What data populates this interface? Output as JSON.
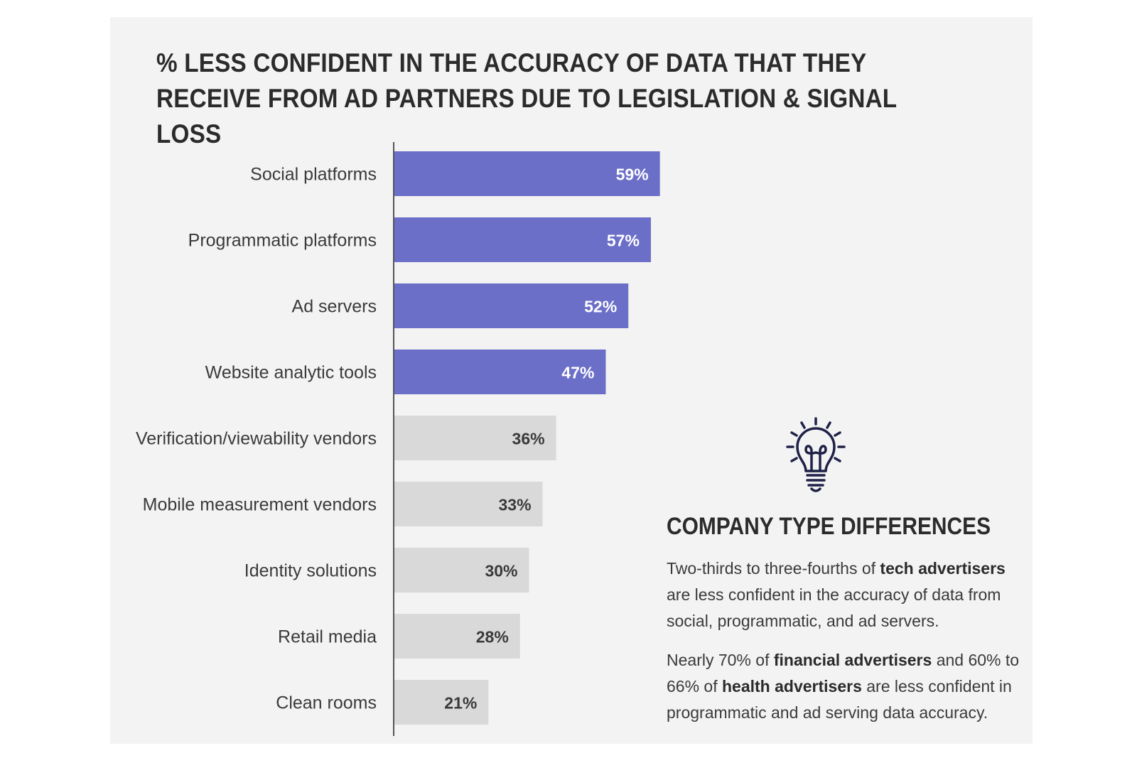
{
  "title_lines": [
    "% LESS CONFIDENT IN THE ACCURACY OF DATA THAT THEY",
    "RECEIVE FROM AD PARTNERS DUE TO LEGISLATION & SIGNAL LOSS"
  ],
  "colors": {
    "highlight_bar": "#6b6fc8",
    "muted_bar": "#d9d9d9",
    "highlight_text": "#ffffff",
    "muted_text": "#3a3a3a",
    "axis": "#555555",
    "icon": "#1f2147"
  },
  "chart_data": {
    "type": "bar",
    "orientation": "horizontal",
    "title": "% LESS CONFIDENT IN THE ACCURACY OF DATA THAT THEY RECEIVE FROM AD PARTNERS DUE TO LEGISLATION & SIGNAL LOSS",
    "categories": [
      "Social platforms",
      "Programmatic platforms",
      "Ad servers",
      "Website analytic tools",
      "Verification/viewability vendors",
      "Mobile measurement vendors",
      "Identity solutions",
      "Retail media",
      "Clean rooms"
    ],
    "values": [
      59,
      57,
      52,
      47,
      36,
      33,
      30,
      28,
      21
    ],
    "value_labels": [
      "59%",
      "57%",
      "52%",
      "47%",
      "36%",
      "33%",
      "30%",
      "28%",
      "21%"
    ],
    "highlighted": [
      true,
      true,
      true,
      true,
      false,
      false,
      false,
      false,
      false
    ],
    "unit": "%",
    "xlim": [
      0,
      100
    ],
    "grid": false,
    "legend": "none"
  },
  "sidebar": {
    "icon": "lightbulb-icon",
    "heading": "COMPANY TYPE DIFFERENCES",
    "p1": {
      "t1": "Two-thirds to three-fourths of ",
      "b1": "tech advertisers",
      "t2": " are less confident in the accuracy of data from social, programmatic, and ad servers."
    },
    "p2": {
      "t1": "Nearly 70% of ",
      "b1": "financial advertisers",
      "t2": " and 60% to 66% of ",
      "b2": "health advertisers",
      "t3": " are less confident in programmatic and ad serving data accuracy."
    }
  }
}
